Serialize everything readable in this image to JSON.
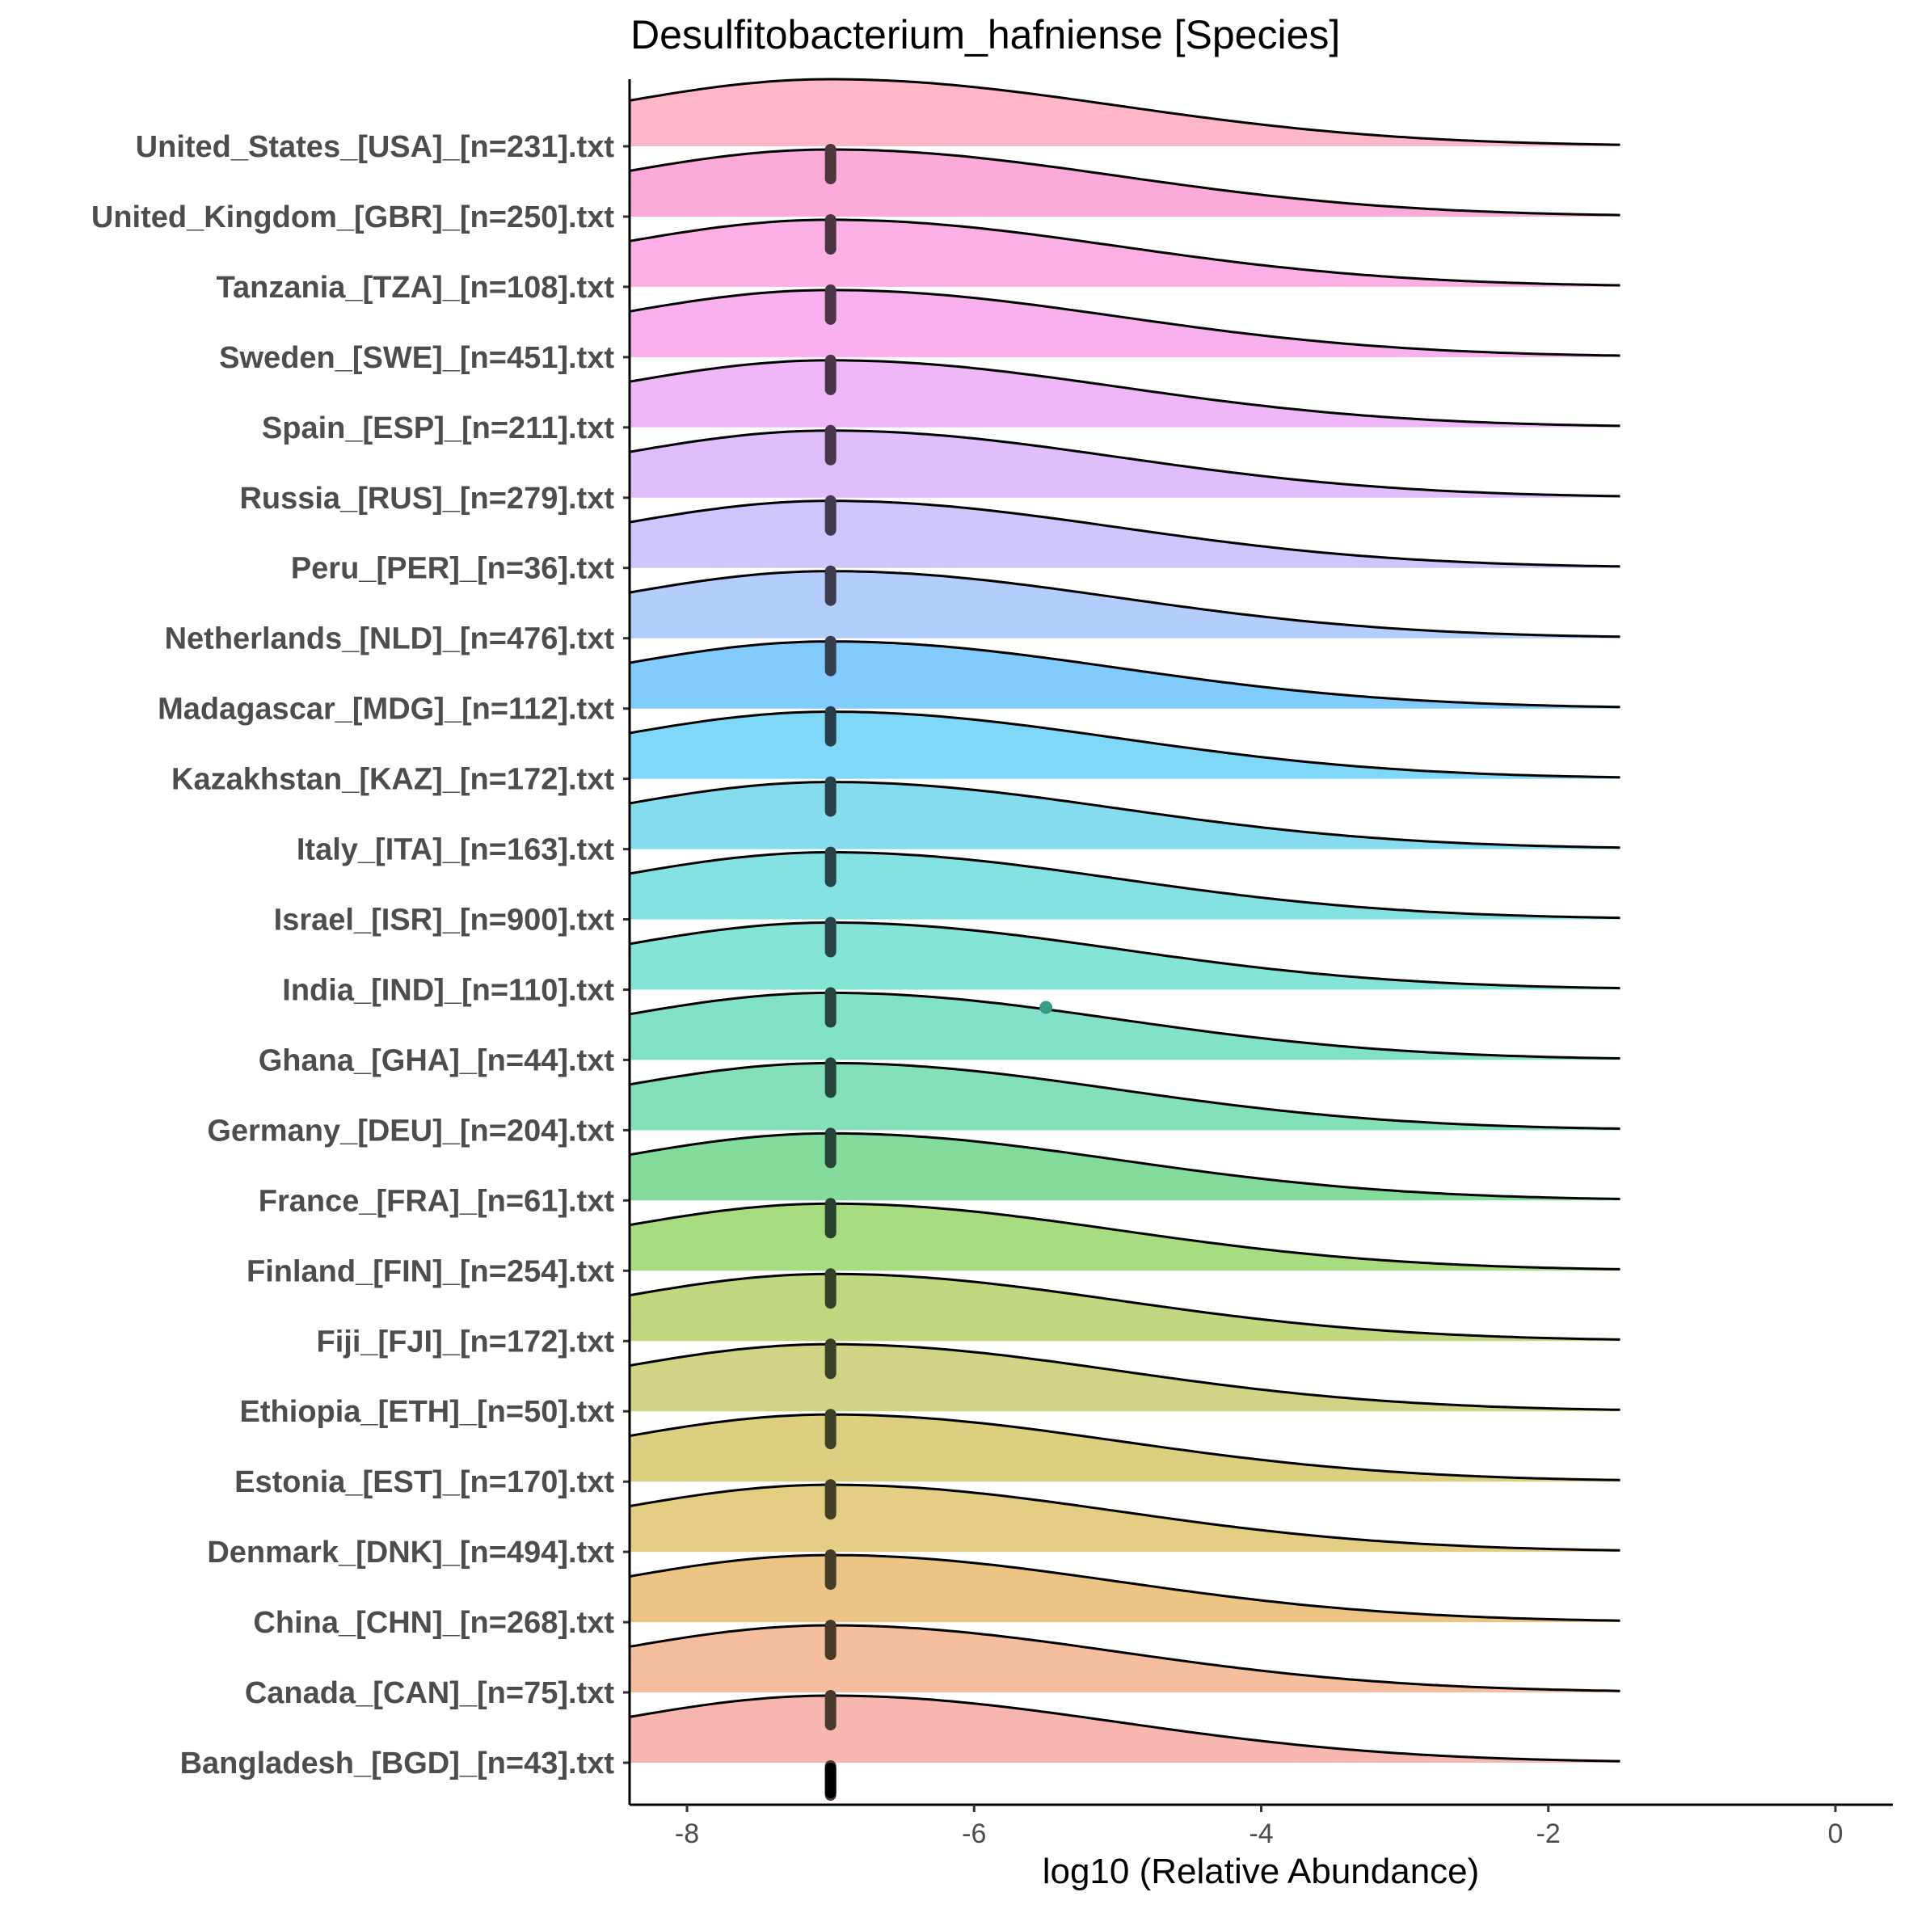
{
  "chart_data": {
    "type": "ridgeline",
    "title": "Desulfitobacterium_hafniense [Species]",
    "xlabel": "log10 (Relative Abundance)",
    "ylabel": "",
    "xlim": [
      -8.4,
      0.4
    ],
    "xticks": [
      -8,
      -6,
      -4,
      -2,
      0
    ],
    "density_range": [
      -8.4,
      -1.5
    ],
    "density_peak": -7.0,
    "categories": [
      "United_States_[USA]_[n=231].txt",
      "United_Kingdom_[GBR]_[n=250].txt",
      "Tanzania_[TZA]_[n=108].txt",
      "Sweden_[SWE]_[n=451].txt",
      "Spain_[ESP]_[n=211].txt",
      "Russia_[RUS]_[n=279].txt",
      "Peru_[PER]_[n=36].txt",
      "Netherlands_[NLD]_[n=476].txt",
      "Madagascar_[MDG]_[n=112].txt",
      "Kazakhstan_[KAZ]_[n=172].txt",
      "Italy_[ITA]_[n=163].txt",
      "Israel_[ISR]_[n=900].txt",
      "India_[IND]_[n=110].txt",
      "Ghana_[GHA]_[n=44].txt",
      "Germany_[DEU]_[n=204].txt",
      "France_[FRA]_[n=61].txt",
      "Finland_[FIN]_[n=254].txt",
      "Fiji_[FJI]_[n=172].txt",
      "Ethiopia_[ETH]_[n=50].txt",
      "Estonia_[EST]_[n=170].txt",
      "Denmark_[DNK]_[n=494].txt",
      "China_[CHN]_[n=268].txt",
      "Canada_[CAN]_[n=75].txt",
      "Bangladesh_[BGD]_[n=43].txt"
    ],
    "fill_colors": [
      "#FFB6C8",
      "#FCAAD9",
      "#FCB0E6",
      "#F8B1EE",
      "#EFB6F8",
      "#E0BEFC",
      "#CEC6FC",
      "#B3CDFC",
      "#82CCFD",
      "#80D8F8",
      "#84DCEE",
      "#84E2E2",
      "#84E4D6",
      "#82E2C8",
      "#84E0B8",
      "#84DC9C",
      "#A8DC80",
      "#C2D880",
      "#D0D484",
      "#DCD080",
      "#E4CE84",
      "#ECC484",
      "#F5BE9E",
      "#F8B6B0"
    ],
    "median_x": -7.0,
    "outliers": [
      {
        "category": "India_[IND]_[n=110].txt",
        "x": -5.5
      }
    ]
  }
}
